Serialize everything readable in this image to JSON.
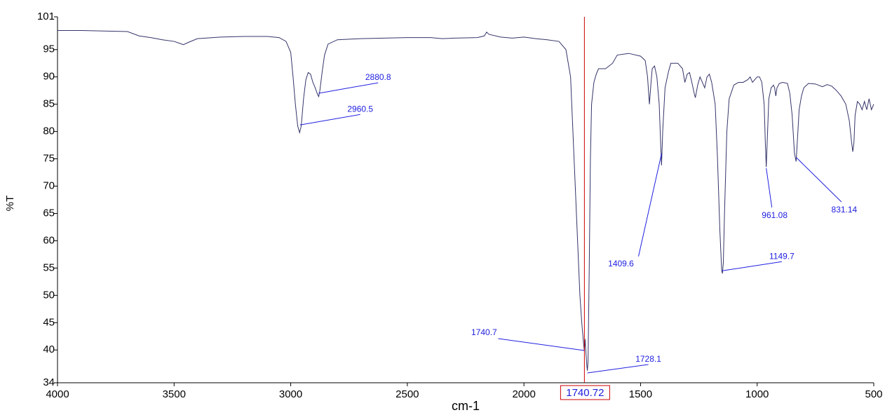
{
  "chart_data": {
    "type": "line",
    "x_label": "cm-1",
    "y_label": "%T",
    "xlim": [
      4000,
      500
    ],
    "ylim": [
      34,
      101
    ],
    "xticks": [
      4000,
      3500,
      3000,
      2500,
      2000,
      1500,
      1000,
      500
    ],
    "yticks": [
      34,
      40,
      45,
      50,
      55,
      60,
      65,
      70,
      75,
      80,
      85,
      90,
      95,
      101
    ],
    "color": "#34346a",
    "x": [
      4000,
      3900,
      3800,
      3700,
      3650,
      3600,
      3550,
      3500,
      3460,
      3440,
      3400,
      3300,
      3200,
      3100,
      3050,
      3020,
      3000,
      2990,
      2980,
      2970,
      2962,
      2955,
      2945,
      2935,
      2925,
      2915,
      2905,
      2895,
      2885,
      2880,
      2875,
      2865,
      2855,
      2840,
      2800,
      2700,
      2600,
      2500,
      2400,
      2350,
      2300,
      2200,
      2170,
      2160,
      2150,
      2100,
      2050,
      2000,
      1950,
      1900,
      1850,
      1820,
      1800,
      1790,
      1780,
      1770,
      1760,
      1752,
      1746,
      1741,
      1738,
      1735,
      1730,
      1728,
      1725,
      1720,
      1715,
      1710,
      1700,
      1690,
      1680,
      1650,
      1620,
      1600,
      1550,
      1500,
      1480,
      1470,
      1462,
      1455,
      1450,
      1440,
      1430,
      1420,
      1414,
      1410,
      1405,
      1395,
      1380,
      1370,
      1340,
      1320,
      1310,
      1300,
      1290,
      1280,
      1270,
      1265,
      1255,
      1245,
      1235,
      1225,
      1215,
      1205,
      1195,
      1180,
      1170,
      1160,
      1152,
      1149,
      1145,
      1140,
      1130,
      1120,
      1100,
      1080,
      1060,
      1040,
      1030,
      1020,
      1010,
      1000,
      990,
      980,
      970,
      965,
      961,
      957,
      950,
      940,
      930,
      925,
      920,
      915,
      905,
      890,
      870,
      860,
      850,
      840,
      833,
      828,
      820,
      810,
      800,
      780,
      750,
      720,
      700,
      680,
      660,
      640,
      620,
      605,
      595,
      590,
      585,
      580,
      570,
      560,
      550,
      540,
      530,
      520,
      510,
      500
    ],
    "values": [
      98.5,
      98.5,
      98.4,
      98.3,
      97.5,
      97.2,
      96.8,
      96.5,
      95.9,
      96.3,
      97.0,
      97.3,
      97.4,
      97.4,
      97.2,
      96.5,
      94.5,
      90,
      85,
      81,
      79.8,
      81,
      86,
      89.5,
      90.8,
      90.5,
      89,
      88,
      86.8,
      86.4,
      87.5,
      91,
      94,
      96,
      96.8,
      97.0,
      97.1,
      97.2,
      97.2,
      97.0,
      97.1,
      97.2,
      97.5,
      98.2,
      97.8,
      97.3,
      97.1,
      97.3,
      97.0,
      96.8,
      96.5,
      95,
      90,
      80,
      70,
      60,
      50,
      45,
      42,
      39.8,
      42,
      40,
      37,
      36.2,
      38,
      55,
      75,
      85,
      89,
      90.5,
      91.5,
      91.5,
      92.5,
      94,
      94.3,
      93.8,
      93,
      90,
      85,
      89,
      91.5,
      92,
      90,
      85,
      78,
      73.8,
      80,
      88,
      91,
      92.5,
      92.5,
      91.5,
      89,
      90.5,
      90.8,
      89,
      87,
      86.2,
      88.5,
      90,
      89,
      88,
      90,
      90.5,
      89,
      85,
      75,
      62,
      54.5,
      54,
      56,
      65,
      80,
      86,
      88.5,
      89,
      89,
      89.5,
      90,
      89,
      89.5,
      90,
      90,
      89,
      85,
      78,
      73.5,
      78,
      86,
      88,
      88.5,
      88,
      86.5,
      88,
      88.8,
      89,
      88.8,
      87,
      83,
      76,
      74.5,
      78,
      84,
      86.5,
      88,
      88.8,
      88.7,
      88.2,
      88.6,
      88.3,
      87.5,
      86.5,
      85,
      82,
      78,
      76.3,
      78,
      83,
      85.5,
      85,
      84,
      85.5,
      84,
      86,
      84,
      85
    ],
    "annotations": [
      {
        "x": 2880.8,
        "y": 87.0
      },
      {
        "x": 2960.5,
        "y": 81.2
      },
      {
        "x": 1740.7,
        "y": 39.9
      },
      {
        "x": 1728.1,
        "y": 35.8
      },
      {
        "x": 1409.6,
        "y": 76.0
      },
      {
        "x": 1149.7,
        "y": 54.5
      },
      {
        "x": 961.08,
        "y": 73.3
      },
      {
        "x": 831.14,
        "y": 75.2
      }
    ],
    "cursor": 1740.72,
    "cursor_color": "#cc0000",
    "annotation_color": "#2020e0"
  }
}
